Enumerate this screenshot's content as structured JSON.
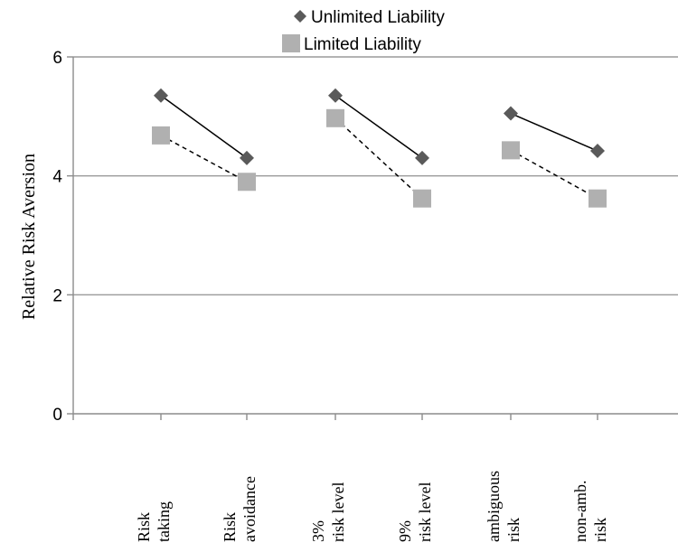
{
  "chart_data": {
    "type": "line",
    "ylabel": "Relative Risk Aversion",
    "xlabel": "",
    "ylim": [
      0,
      6
    ],
    "yticks": [
      0,
      2,
      4,
      6
    ],
    "grid": true,
    "legend_position": "top",
    "categories": [
      [
        "Risk",
        "taking"
      ],
      [
        "Risk",
        "avoidance"
      ],
      [
        "3%",
        "risk level"
      ],
      [
        "9%",
        "risk level"
      ],
      [
        "ambiguous",
        "risk"
      ],
      [
        "non-amb.",
        "risk"
      ]
    ],
    "series": [
      {
        "name": "Unlimited Liability",
        "marker": "diamond",
        "color": "#5a5a5a",
        "line_style": "solid",
        "values": [
          5.35,
          4.3,
          5.35,
          4.3,
          5.05,
          4.42
        ]
      },
      {
        "name": "Limited Liability",
        "marker": "square",
        "color": "#b0b0b0",
        "line_style": "dashed",
        "values": [
          4.68,
          3.9,
          4.97,
          3.62,
          4.43,
          3.62
        ]
      }
    ],
    "segments": [
      [
        0,
        1
      ],
      [
        2,
        3
      ],
      [
        4,
        5
      ]
    ]
  }
}
